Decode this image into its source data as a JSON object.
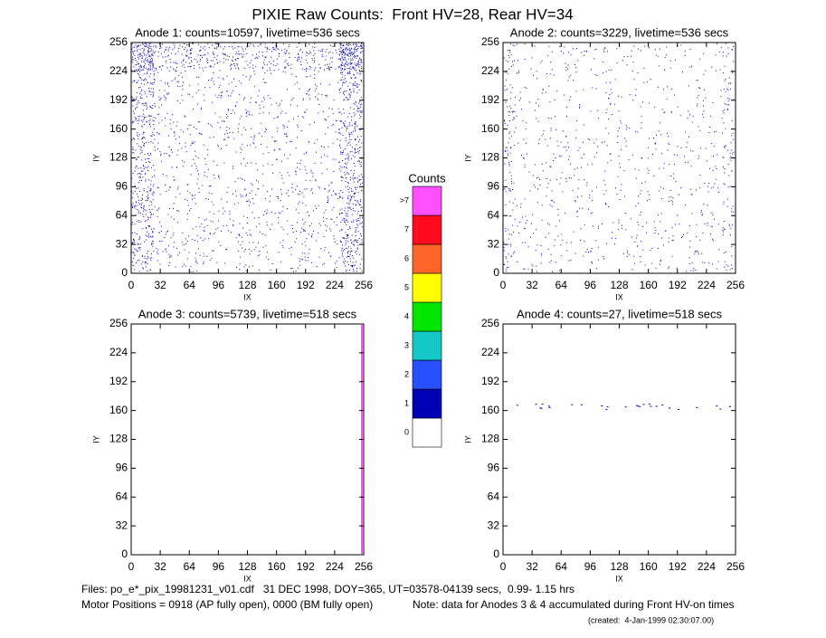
{
  "title": "PIXIE Raw Counts:  Front HV=28, Rear HV=34",
  "chart_data": [
    {
      "type": "heatmap",
      "title": "Anode 1: counts=10597, livetime=536 secs",
      "xlabel": "IX",
      "ylabel": "IY",
      "xlim": [
        0,
        256
      ],
      "ylim": [
        0,
        256
      ],
      "xticks": [
        0,
        32,
        64,
        96,
        128,
        160,
        192,
        224,
        256
      ],
      "yticks": [
        0,
        32,
        64,
        96,
        128,
        160,
        192,
        224,
        256
      ]
    },
    {
      "type": "heatmap",
      "title": "Anode 2: counts=3229, livetime=536 secs",
      "xlabel": "IX",
      "ylabel": "IY",
      "xlim": [
        0,
        256
      ],
      "ylim": [
        0,
        256
      ],
      "xticks": [
        0,
        32,
        64,
        96,
        128,
        160,
        192,
        224,
        256
      ],
      "yticks": [
        0,
        32,
        64,
        96,
        128,
        160,
        192,
        224,
        256
      ]
    },
    {
      "type": "heatmap",
      "title": "Anode 3: counts=5739, livetime=518 secs",
      "xlabel": "IX",
      "ylabel": "IY",
      "xlim": [
        0,
        256
      ],
      "ylim": [
        0,
        256
      ],
      "xticks": [
        0,
        32,
        64,
        96,
        128,
        160,
        192,
        224,
        256
      ],
      "yticks": [
        0,
        32,
        64,
        96,
        128,
        160,
        192,
        224,
        256
      ]
    },
    {
      "type": "heatmap",
      "title": "Anode 4: counts=27, livetime=518 secs",
      "xlabel": "IX",
      "ylabel": "IY",
      "xlim": [
        0,
        256
      ],
      "ylim": [
        0,
        256
      ],
      "xticks": [
        0,
        32,
        64,
        96,
        128,
        160,
        192,
        224,
        256
      ],
      "yticks": [
        0,
        32,
        64,
        96,
        128,
        160,
        192,
        224,
        256
      ]
    }
  ],
  "colorbar": {
    "title": "Counts",
    "labels": [
      "0",
      "1",
      "2",
      "3",
      "4",
      "5",
      "6",
      "7",
      ">7"
    ],
    "colors": [
      "#ffffff",
      "#0000b4",
      "#2850ff",
      "#14c8c8",
      "#00e600",
      "#ffff00",
      "#ff6428",
      "#ff0a1e",
      "#ff50ff"
    ]
  },
  "footer": {
    "files": "Files: po_e*_pix_19981231_v01.cdf   31 DEC 1998, DOY=365, UT=03578-04139 secs,  0.99- 1.15 hrs",
    "motor": "Motor Positions = 0918 (AP fully open), 0000 (BM fully open)",
    "note": "Note: data for Anodes 3 & 4 accumulated during Front HV-on times",
    "created": "(created:  4-Jan-1999 02:30:07.00)"
  }
}
